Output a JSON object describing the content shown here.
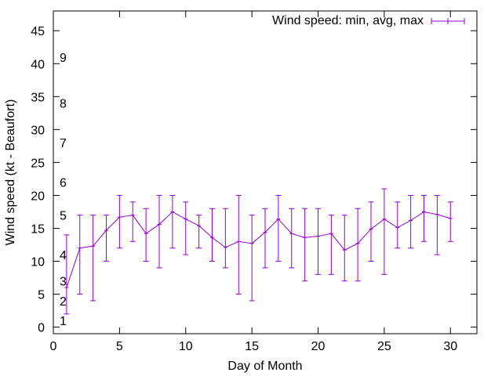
{
  "chart_data": {
    "type": "line",
    "xlabel": "Day of Month",
    "ylabel": "Wind speed (kt - Beaufort)",
    "xlim": [
      0,
      32
    ],
    "ylim": [
      -1,
      48
    ],
    "x_ticks": [
      0,
      5,
      10,
      15,
      20,
      25,
      30
    ],
    "y_ticks": [
      0,
      5,
      10,
      15,
      20,
      25,
      30,
      35,
      40,
      45
    ],
    "grid": false,
    "legend_position": "top-right",
    "colors": {
      "series": "#9400d3",
      "axis": "#000000"
    },
    "series": [
      {
        "name": "Wind speed: min, avg, max",
        "x": [
          1,
          2,
          3,
          4,
          5,
          6,
          7,
          8,
          9,
          10,
          11,
          12,
          13,
          14,
          15,
          16,
          17,
          18,
          19,
          20,
          21,
          22,
          23,
          24,
          25,
          26,
          27,
          28,
          29,
          30
        ],
        "avg": [
          6,
          12,
          12.3,
          14.7,
          16.7,
          17,
          14.2,
          15.6,
          17.5,
          16.4,
          15.4,
          13.6,
          12.1,
          13,
          12.7,
          14.4,
          16.4,
          14.2,
          13.6,
          13.8,
          14.2,
          11.7,
          12.7,
          14.9,
          16.4,
          15.1,
          16.2,
          17.5,
          17.1,
          16.5
        ],
        "min": [
          2,
          5,
          4,
          10,
          12,
          13,
          10,
          9,
          12,
          11,
          12,
          10,
          9,
          5,
          4,
          9,
          10,
          9,
          7,
          8,
          8,
          7,
          7,
          10,
          8,
          12,
          12,
          13,
          11,
          13
        ],
        "max": [
          14,
          17,
          17,
          17,
          20,
          19,
          18,
          20,
          20,
          19,
          17,
          18,
          18,
          20,
          17,
          18,
          20,
          18,
          18,
          18,
          17,
          17,
          18,
          19,
          21,
          19,
          20,
          20,
          20,
          19
        ]
      }
    ],
    "beaufort_labels": [
      {
        "label": "1",
        "y": 1
      },
      {
        "label": "2",
        "y": 4
      },
      {
        "label": "3",
        "y": 7
      },
      {
        "label": "4",
        "y": 11
      },
      {
        "label": "5",
        "y": 17
      },
      {
        "label": "6",
        "y": 22
      },
      {
        "label": "7",
        "y": 28
      },
      {
        "label": "8",
        "y": 34
      },
      {
        "label": "9",
        "y": 41
      }
    ]
  }
}
